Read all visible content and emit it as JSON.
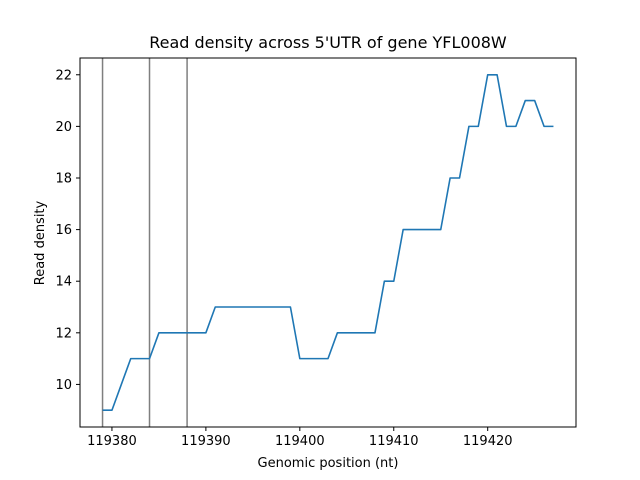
{
  "chart_data": {
    "type": "line",
    "title": "Read density across 5'UTR of gene YFL008W",
    "xlabel": "Genomic position (nt)",
    "ylabel": "Read density",
    "xlim": [
      119376.6,
      119429.4
    ],
    "ylim": [
      8.35,
      22.65
    ],
    "xticks": [
      119380,
      119390,
      119400,
      119410,
      119420
    ],
    "yticks": [
      10,
      12,
      14,
      16,
      18,
      20,
      22
    ],
    "grid": false,
    "line_color": "#1f77b4",
    "vline_color": "#7f7f7f",
    "vlines": [
      119379,
      119384,
      119388
    ],
    "series": [
      {
        "x": [
          119379,
          119380,
          119381,
          119382,
          119383,
          119384,
          119385,
          119386,
          119387,
          119388,
          119389,
          119390,
          119391,
          119392,
          119393,
          119394,
          119395,
          119396,
          119397,
          119398,
          119399,
          119400,
          119401,
          119402,
          119403,
          119404,
          119405,
          119406,
          119407,
          119408,
          119409,
          119410,
          119411,
          119412,
          119413,
          119414,
          119415,
          119416,
          119417,
          119418,
          119419,
          119420,
          119421,
          119422,
          119423,
          119424,
          119425,
          119426,
          119427
        ],
        "values": [
          9,
          9,
          10,
          11,
          11,
          11,
          12,
          12,
          12,
          12,
          12,
          12,
          13,
          13,
          13,
          13,
          13,
          13,
          13,
          13,
          13,
          11,
          11,
          11,
          11,
          12,
          12,
          12,
          12,
          12,
          14,
          14,
          16,
          16,
          16,
          16,
          16,
          18,
          18,
          20,
          20,
          22,
          22,
          20,
          20,
          21,
          21,
          20,
          20
        ]
      }
    ]
  }
}
